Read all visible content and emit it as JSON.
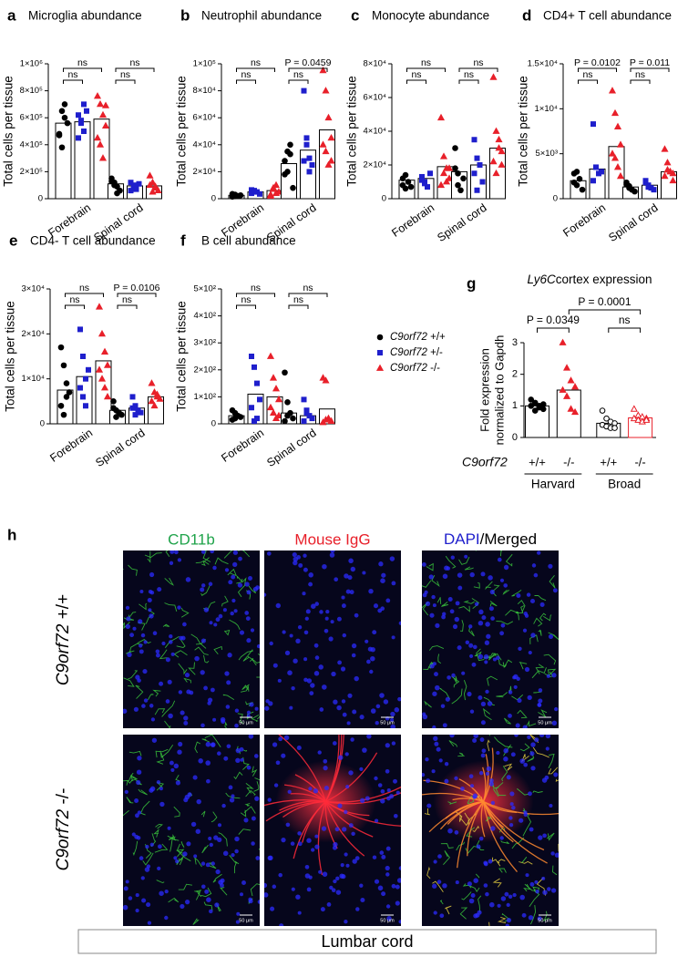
{
  "chart_data": [
    {
      "type": "bar",
      "label": "a",
      "title": "Microglia abundance",
      "ylabel": "Total cells per tissue",
      "categories": [
        "Forebrain",
        "Spinal cord"
      ],
      "ylim": [
        0,
        1000000
      ],
      "yticks": [
        0,
        {
          "value": 200000,
          "label": "2×10⁵"
        },
        {
          "value": 400000,
          "label": "4×10⁵"
        },
        {
          "value": 600000,
          "label": "6×10⁵"
        },
        {
          "value": 800000,
          "label": "8×10⁵"
        },
        {
          "value": 1000000,
          "label": "1×10⁶"
        }
      ],
      "series": [
        {
          "color": "#000000",
          "marker": "circle",
          "values": [
            560000,
            110000
          ],
          "points": [
            [
              480000,
              650000,
              600000,
              560000,
              470000,
              380000,
              700000
            ],
            [
              150000,
              120000,
              90000,
              60000,
              130000,
              100000,
              40000
            ]
          ]
        },
        {
          "color": "#1f1fcc",
          "marker": "square",
          "values": [
            570000,
            95000
          ],
          "points": [
            [
              620000,
              560000,
              500000,
              650000,
              450000,
              580000,
              700000
            ],
            [
              120000,
              90000,
              80000,
              110000,
              60000,
              100000,
              70000
            ]
          ]
        },
        {
          "color": "#e8202a",
          "marker": "triangle",
          "values": [
            590000,
            95000
          ],
          "points": [
            [
              760000,
              700000,
              620000,
              540000,
              450000,
              400000,
              300000,
              690000
            ],
            [
              170000,
              120000,
              80000,
              60000,
              100000,
              50000,
              90000
            ]
          ]
        }
      ],
      "comparisons": [
        {
          "category": 0,
          "pair": [
            0,
            1
          ],
          "label": "ns"
        },
        {
          "category": 0,
          "pair": [
            0,
            2
          ],
          "label": "ns"
        },
        {
          "category": 1,
          "pair": [
            0,
            1
          ],
          "label": "ns"
        },
        {
          "category": 1,
          "pair": [
            0,
            2
          ],
          "label": "ns"
        }
      ]
    },
    {
      "type": "bar",
      "label": "b",
      "title": "Neutrophil abundance",
      "ylabel": "Total cells per tissue",
      "categories": [
        "Forebrain",
        "Spinal cord"
      ],
      "ylim": [
        0,
        100000
      ],
      "yticks": [
        0,
        {
          "value": 20000,
          "label": "2×10⁴"
        },
        {
          "value": 40000,
          "label": "4×10⁴"
        },
        {
          "value": 60000,
          "label": "6×10⁴"
        },
        {
          "value": 80000,
          "label": "8×10⁴"
        },
        {
          "value": 100000,
          "label": "1×10⁵"
        }
      ],
      "series": [
        {
          "color": "#000000",
          "marker": "circle",
          "values": [
            2500,
            26000
          ],
          "points": [
            [
              1500,
              3000,
              2000,
              2500,
              3500,
              1800
            ],
            [
              18000,
              35000,
              33000,
              8000,
              28000,
              20000,
              40000
            ]
          ]
        },
        {
          "color": "#1f1fcc",
          "marker": "square",
          "values": [
            5000,
            36000
          ],
          "points": [
            [
              4000,
              6000,
              5000,
              3500,
              6500,
              5500
            ],
            [
              80000,
              40000,
              30000,
              25000,
              28000,
              45000,
              20000
            ]
          ]
        },
        {
          "color": "#e8202a",
          "marker": "triangle",
          "values": [
            6000,
            51000
          ],
          "points": [
            [
              3000,
              8000,
              10000,
              5000,
              2000,
              7000,
              4000
            ],
            [
              95000,
              80000,
              60000,
              45000,
              40000,
              35000,
              25000,
              28000
            ]
          ]
        }
      ],
      "comparisons": [
        {
          "category": 0,
          "pair": [
            0,
            1
          ],
          "label": "ns"
        },
        {
          "category": 0,
          "pair": [
            0,
            2
          ],
          "label": "ns"
        },
        {
          "category": 1,
          "pair": [
            0,
            1
          ],
          "label": "ns"
        },
        {
          "category": 1,
          "pair": [
            0,
            2
          ],
          "label": "P = 0.0459"
        }
      ]
    },
    {
      "type": "bar",
      "label": "c",
      "title": "Monocyte abundance",
      "ylabel": "Total cells per tissue",
      "categories": [
        "Forebrain",
        "Spinal cord"
      ],
      "ylim": [
        0,
        80000
      ],
      "yticks": [
        0,
        {
          "value": 20000,
          "label": "2×10⁴"
        },
        {
          "value": 40000,
          "label": "4×10⁴"
        },
        {
          "value": 60000,
          "label": "6×10⁴"
        },
        {
          "value": 80000,
          "label": "8×10⁴"
        }
      ],
      "series": [
        {
          "color": "#000000",
          "marker": "circle",
          "values": [
            11000,
            16000
          ],
          "points": [
            [
              8000,
              14000,
              10000,
              7000,
              12000,
              6000
            ],
            [
              30000,
              15000,
              5000,
              12000,
              18000,
              8000
            ]
          ]
        },
        {
          "color": "#1f1fcc",
          "marker": "square",
          "values": [
            12000,
            20000
          ],
          "points": [
            [
              13000,
              10000,
              7000,
              15000,
              11000,
              9000
            ],
            [
              35000,
              24000,
              20000,
              10000,
              15000,
              5000
            ]
          ]
        },
        {
          "color": "#e8202a",
          "marker": "triangle",
          "values": [
            19000,
            30000
          ],
          "points": [
            [
              48000,
              25000,
              18000,
              12000,
              8000,
              15000,
              10000,
              18000
            ],
            [
              72000,
              40000,
              35000,
              28000,
              22000,
              15000,
              30000,
              20000
            ]
          ]
        }
      ],
      "comparisons": [
        {
          "category": 0,
          "pair": [
            0,
            1
          ],
          "label": "ns"
        },
        {
          "category": 0,
          "pair": [
            0,
            2
          ],
          "label": "ns"
        },
        {
          "category": 1,
          "pair": [
            0,
            1
          ],
          "label": "ns"
        },
        {
          "category": 1,
          "pair": [
            0,
            2
          ],
          "label": "ns"
        }
      ]
    },
    {
      "type": "bar",
      "label": "d",
      "title": "CD4+ T cell abundance",
      "ylabel": "Total cells per tissue",
      "categories": [
        "Forebrain",
        "Spinal cord"
      ],
      "ylim": [
        0,
        15000
      ],
      "yticks": [
        0,
        {
          "value": 5000,
          "label": "5×10³"
        },
        {
          "value": 10000,
          "label": "1×10⁴"
        },
        {
          "value": 15000,
          "label": "1.5×10⁴"
        }
      ],
      "series": [
        {
          "color": "#000000",
          "marker": "circle",
          "values": [
            2000,
            1300
          ],
          "points": [
            [
              2800,
              1500,
              2200,
              1000,
              1800,
              3000
            ],
            [
              1800,
              1200,
              1000,
              800,
              1600,
              1400
            ]
          ]
        },
        {
          "color": "#1f1fcc",
          "marker": "square",
          "values": [
            3300,
            1500
          ],
          "points": [
            [
              8300,
              3500,
              2800,
              3000,
              2000,
              3500
            ],
            [
              2000,
              1500,
              1200,
              1000,
              1800,
              1300
            ]
          ]
        },
        {
          "color": "#e8202a",
          "marker": "triangle",
          "values": [
            5800,
            3000
          ],
          "points": [
            [
              12000,
              9500,
              8000,
              6000,
              5000,
              4500,
              3500,
              2500
            ],
            [
              5500,
              4000,
              3000,
              2800,
              2500,
              3200,
              3000,
              2000
            ]
          ]
        }
      ],
      "comparisons": [
        {
          "category": 0,
          "pair": [
            0,
            1
          ],
          "label": "ns"
        },
        {
          "category": 0,
          "pair": [
            0,
            2
          ],
          "label": "P = 0.0102"
        },
        {
          "category": 1,
          "pair": [
            0,
            1
          ],
          "label": "ns"
        },
        {
          "category": 1,
          "pair": [
            0,
            2
          ],
          "label": "P = 0.011"
        }
      ]
    },
    {
      "type": "bar",
      "label": "e",
      "title": "CD4- T cell abundance",
      "ylabel": "Total cells per tissue",
      "categories": [
        "Forebrain",
        "Spinal cord"
      ],
      "ylim": [
        0,
        30000
      ],
      "yticks": [
        0,
        {
          "value": 10000,
          "label": "1×10⁴"
        },
        {
          "value": 20000,
          "label": "2×10⁴"
        },
        {
          "value": 30000,
          "label": "3×10⁴"
        }
      ],
      "series": [
        {
          "color": "#000000",
          "marker": "circle",
          "values": [
            7500,
            3000
          ],
          "points": [
            [
              17000,
              13000,
              9000,
              7000,
              4000,
              2000,
              6000
            ],
            [
              5000,
              3000,
              2500,
              2000,
              3500,
              1500
            ]
          ]
        },
        {
          "color": "#1f1fcc",
          "marker": "square",
          "values": [
            10500,
            3500
          ],
          "points": [
            [
              21000,
              15000,
              10000,
              12000,
              8000,
              6000,
              4000
            ],
            [
              6000,
              4000,
              3000,
              2500,
              3500,
              2000
            ]
          ]
        },
        {
          "color": "#e8202a",
          "marker": "triangle",
          "values": [
            14000,
            6000
          ],
          "points": [
            [
              26000,
              20000,
              16000,
              13000,
              12000,
              10000,
              8000,
              6000
            ],
            [
              9000,
              7000,
              6000,
              5500,
              5000,
              4000,
              6500
            ]
          ]
        }
      ],
      "comparisons": [
        {
          "category": 0,
          "pair": [
            0,
            1
          ],
          "label": "ns"
        },
        {
          "category": 0,
          "pair": [
            0,
            2
          ],
          "label": "ns"
        },
        {
          "category": 1,
          "pair": [
            0,
            1
          ],
          "label": "ns"
        },
        {
          "category": 1,
          "pair": [
            0,
            2
          ],
          "label": "P = 0.0106"
        }
      ]
    },
    {
      "type": "bar",
      "label": "f",
      "title": "B cell abundance",
      "ylabel": "Total cells per tissue",
      "categories": [
        "Forebrain",
        "Spinal cord"
      ],
      "ylim": [
        0,
        500
      ],
      "yticks": [
        0,
        {
          "value": 100,
          "label": "1×10²"
        },
        {
          "value": 200,
          "label": "2×10²"
        },
        {
          "value": 300,
          "label": "3×10²"
        },
        {
          "value": 400,
          "label": "4×10²"
        },
        {
          "value": 500,
          "label": "5×10²"
        }
      ],
      "legend": "right",
      "series": [
        {
          "name": "C9orf72 +/+",
          "color": "#000000",
          "marker": "circle",
          "values": [
            30,
            40
          ],
          "points": [
            [
              50,
              20,
              30,
              25,
              15,
              40
            ],
            [
              190,
              80,
              40,
              20,
              10,
              30
            ]
          ]
        },
        {
          "name": "C9orf72 +/-",
          "color": "#1f1fcc",
          "marker": "square",
          "values": [
            110,
            30
          ],
          "points": [
            [
              250,
              210,
              150,
              90,
              60,
              10,
              20
            ],
            [
              90,
              40,
              30,
              20,
              10,
              50
            ]
          ]
        },
        {
          "name": "C9orf72 -/-",
          "color": "#e8202a",
          "marker": "triangle",
          "values": [
            100,
            55
          ],
          "points": [
            [
              250,
              170,
              130,
              90,
              60,
              40,
              20,
              30
            ],
            [
              170,
              160,
              20,
              10,
              5,
              15
            ]
          ]
        }
      ],
      "comparisons": [
        {
          "category": 0,
          "pair": [
            0,
            1
          ],
          "label": "ns"
        },
        {
          "category": 0,
          "pair": [
            0,
            2
          ],
          "label": "ns"
        },
        {
          "category": 1,
          "pair": [
            0,
            1
          ],
          "label": "ns"
        },
        {
          "category": 1,
          "pair": [
            0,
            2
          ],
          "label": "ns"
        }
      ]
    },
    {
      "type": "dotbar",
      "label": "g",
      "title_italic": "Ly6C",
      "title": "cortex expression",
      "ylabel": [
        "Fold expression",
        "normalized to Gapdh"
      ],
      "xlabel": "C9orf72",
      "categories": [
        "+/+",
        "-/-",
        "+/+",
        "-/-"
      ],
      "groups": [
        {
          "label": "Harvard",
          "range": [
            0,
            1
          ]
        },
        {
          "label": "Broad",
          "range": [
            2,
            3
          ]
        }
      ],
      "ylim": [
        0,
        3
      ],
      "yticks": [
        0,
        1,
        2,
        3
      ],
      "values": [
        1.0,
        1.5,
        0.45,
        0.62
      ],
      "colors": [
        "#000000",
        "#e8202a",
        "#000000",
        "#e8202a"
      ],
      "bar_edges": [
        "#000000",
        "#000000",
        "#000000",
        "#e8202a"
      ],
      "markers": [
        "circle",
        "triangle",
        "circle",
        "triangle"
      ],
      "hollow": [
        false,
        false,
        true,
        true
      ],
      "points": [
        [
          1.2,
          1.1,
          1.0,
          0.9,
          1.0,
          0.85,
          0.95,
          1.05
        ],
        [
          3.0,
          2.2,
          1.8,
          1.6,
          1.5,
          1.3,
          0.9,
          0.8
        ],
        [
          0.85,
          0.6,
          0.5,
          0.45,
          0.4,
          0.35,
          0.3,
          0.3
        ],
        [
          0.9,
          0.7,
          0.65,
          0.6,
          0.6,
          0.55,
          0.5,
          0.55
        ]
      ],
      "comparisons": [
        {
          "pair": [
            0,
            1
          ],
          "label": "P = 0.0349"
        },
        {
          "pair": [
            2,
            3
          ],
          "label": "ns"
        },
        {
          "pair": [
            1,
            3
          ],
          "label": "P = 0.0001"
        }
      ]
    }
  ],
  "panel_h": {
    "label": "h",
    "cd11b": "CD11b",
    "igg": "Mouse IgG",
    "dapi": "DAPI",
    "merged": "/Merged",
    "rows": [
      "C9orf72 +/+",
      "C9orf72 -/-"
    ],
    "scale_bar": "50 μm",
    "region": "Lumbar cord"
  }
}
